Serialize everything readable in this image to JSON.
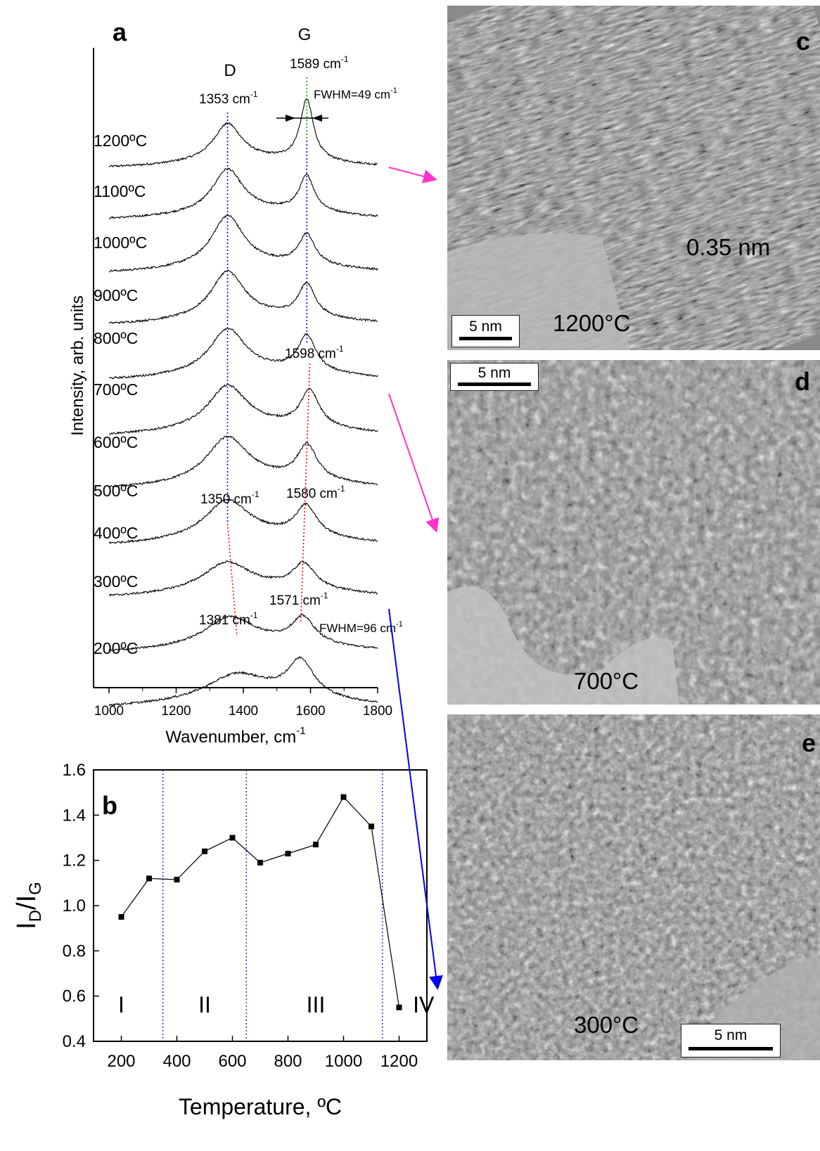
{
  "panels": {
    "a": "a",
    "b": "b",
    "c": "c",
    "d": "d",
    "e": "e"
  },
  "chart_data": [
    {
      "type": "line",
      "panel": "a",
      "xlabel": "Wavenumber, cm",
      "xlabel_sup": "-1",
      "ylabel": "Intensity, arb. units",
      "xlim": [
        1000,
        1800
      ],
      "xticks": [
        1000,
        1200,
        1400,
        1600,
        1800
      ],
      "series": [
        {
          "name": "1200ºC",
          "D": 1353,
          "G": 1589,
          "hD": 0.82,
          "hG": 1.33,
          "wD": 52,
          "wG": 24,
          "bg": 0.18
        },
        {
          "name": "1100ºC",
          "D": 1353,
          "G": 1589,
          "hD": 0.95,
          "hG": 0.78,
          "wD": 55,
          "wG": 27,
          "bg": 0.2
        },
        {
          "name": "1000ºC",
          "D": 1353,
          "G": 1589,
          "hD": 1.1,
          "hG": 0.66,
          "wD": 58,
          "wG": 29,
          "bg": 0.2
        },
        {
          "name": "900ºC",
          "D": 1353,
          "G": 1589,
          "hD": 1.02,
          "hG": 0.72,
          "wD": 60,
          "wG": 30,
          "bg": 0.2
        },
        {
          "name": "800ºC",
          "D": 1353,
          "G": 1589,
          "hD": 0.96,
          "hG": 0.78,
          "wD": 64,
          "wG": 32,
          "bg": 0.22
        },
        {
          "name": "700ºC",
          "D": 1353,
          "G": 1598,
          "hD": 0.93,
          "hG": 0.79,
          "wD": 70,
          "wG": 34,
          "bg": 0.22
        },
        {
          "name": "600ºC",
          "D": 1353,
          "G": 1590,
          "hD": 0.97,
          "hG": 0.75,
          "wD": 75,
          "wG": 36,
          "bg": 0.22
        },
        {
          "name": "500ºC",
          "D": 1352,
          "G": 1587,
          "hD": 0.82,
          "hG": 0.66,
          "wD": 80,
          "wG": 38,
          "bg": 0.22
        },
        {
          "name": "400ºC",
          "D": 1350,
          "G": 1580,
          "hD": 0.6,
          "hG": 0.54,
          "wD": 85,
          "wG": 40,
          "bg": 0.22
        },
        {
          "name": "300ºC",
          "D": 1360,
          "G": 1578,
          "hD": 0.62,
          "hG": 0.57,
          "wD": 90,
          "wG": 42,
          "bg": 0.2
        },
        {
          "name": "200ºC",
          "D": 1381,
          "G": 1571,
          "hD": 0.55,
          "hG": 0.8,
          "wD": 110,
          "wG": 48,
          "bg": 0.2
        }
      ],
      "annotations": {
        "D_label": "D",
        "G_label": "G",
        "ann_1589": "1589 cm",
        "ann_1353": "1353 cm",
        "ann_1598": "1598 cm",
        "ann_1350": "1350 cm",
        "ann_1580": "1580 cm",
        "ann_1381": "1381 cm",
        "ann_1571": "1571 cm",
        "fwhm_top": "FWHM=49 cm",
        "fwhm_bottom": "FWHM=96 cm",
        "sup": "-1"
      },
      "colors": {
        "D_trend": "#0000ff",
        "G_trend_high": "#0000ff",
        "G_trend_low": "#ff0000",
        "G_top": "#00aa00",
        "trend_low": "#ff0000"
      }
    },
    {
      "type": "line",
      "panel": "b",
      "x": [
        200,
        300,
        400,
        500,
        600,
        700,
        800,
        900,
        1000,
        1100,
        1200
      ],
      "y": [
        0.95,
        1.12,
        1.115,
        1.24,
        1.3,
        1.19,
        1.23,
        1.27,
        1.48,
        1.35,
        0.55
      ],
      "xlabel": "Temperature, ºC",
      "ylabel": "I",
      "ylabel_sub1": "D",
      "ylabel_mid": "/I",
      "ylabel_sub2": "G",
      "xlim": [
        100,
        1300
      ],
      "ylim": [
        0.4,
        1.6
      ],
      "xticks": [
        200,
        400,
        600,
        800,
        1000,
        1200
      ],
      "yticks": [
        0.4,
        0.6,
        0.8,
        1.0,
        1.2,
        1.4,
        1.6
      ],
      "ytick_labels": [
        "0.4",
        "0.6",
        "0.8",
        "1.0",
        "1.2",
        "1.4",
        "1.6"
      ],
      "region_boundaries": [
        350,
        650,
        1140
      ],
      "regions": [
        {
          "label": "I",
          "x": 200
        },
        {
          "label": "II",
          "x": 500
        },
        {
          "label": "III",
          "x": 900
        },
        {
          "label": "IV",
          "x": 1250
        }
      ],
      "colors": {
        "boundary": "#0000cc",
        "line": "#000000"
      }
    }
  ],
  "images": {
    "c": {
      "temp": "1200°C",
      "scale": "5 nm",
      "spacing": "0.35 nm"
    },
    "d": {
      "temp": "700°C",
      "scale": "5 nm"
    },
    "e": {
      "temp": "300°C",
      "scale": "5 nm"
    }
  },
  "arrows": {
    "magenta": "#ff33cc",
    "blue": "#0000ee"
  }
}
